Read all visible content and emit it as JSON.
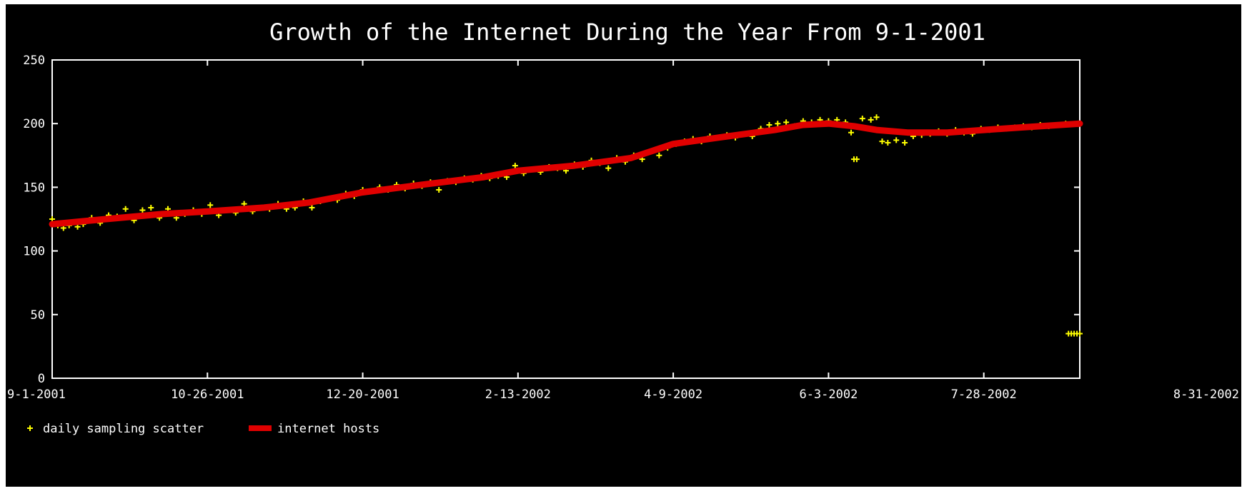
{
  "chart_data": {
    "type": "line",
    "title": "Growth of the Internet During the Year From 9-1-2001",
    "xlabel": "",
    "ylabel": "",
    "ylim": [
      0,
      250
    ],
    "xlim": [
      "2001-09-01",
      "2002-08-31"
    ],
    "yticks": [
      0,
      50,
      100,
      150,
      200,
      250
    ],
    "xtick_labels": [
      "9-1-2001",
      "10-26-2001",
      "12-20-2001",
      "2-13-2002",
      "4-9-2002",
      "6-3-2002",
      "7-28-2002",
      "8-31-2002"
    ],
    "xtick_dates": [
      "2001-09-01",
      "2001-10-26",
      "2001-12-20",
      "2002-02-13",
      "2002-04-09",
      "2002-06-03",
      "2002-07-28",
      "2002-08-31"
    ],
    "grid": false,
    "legend_position": "bottom-left",
    "series": [
      {
        "name": "daily sampling scatter",
        "kind": "scatter",
        "color": "#ffff00",
        "points": [
          [
            "2001-09-01",
            125
          ],
          [
            "2001-09-03",
            120
          ],
          [
            "2001-09-05",
            118
          ],
          [
            "2001-09-07",
            120
          ],
          [
            "2001-09-10",
            119
          ],
          [
            "2001-09-12",
            121
          ],
          [
            "2001-09-15",
            126
          ],
          [
            "2001-09-18",
            122
          ],
          [
            "2001-09-21",
            128
          ],
          [
            "2001-09-24",
            127
          ],
          [
            "2001-09-27",
            133
          ],
          [
            "2001-09-30",
            124
          ],
          [
            "2001-10-03",
            132
          ],
          [
            "2001-10-06",
            134
          ],
          [
            "2001-10-09",
            126
          ],
          [
            "2001-10-12",
            133
          ],
          [
            "2001-10-15",
            126
          ],
          [
            "2001-10-18",
            129
          ],
          [
            "2001-10-21",
            132
          ],
          [
            "2001-10-24",
            129
          ],
          [
            "2001-10-27",
            136
          ],
          [
            "2001-10-30",
            128
          ],
          [
            "2001-11-02",
            132
          ],
          [
            "2001-11-05",
            130
          ],
          [
            "2001-11-08",
            137
          ],
          [
            "2001-11-11",
            131
          ],
          [
            "2001-11-14",
            134
          ],
          [
            "2001-11-17",
            133
          ],
          [
            "2001-11-20",
            137
          ],
          [
            "2001-11-23",
            133
          ],
          [
            "2001-11-26",
            134
          ],
          [
            "2001-11-29",
            139
          ],
          [
            "2001-12-02",
            134
          ],
          [
            "2001-12-05",
            139
          ],
          [
            "2001-12-08",
            141
          ],
          [
            "2001-12-11",
            140
          ],
          [
            "2001-12-14",
            145
          ],
          [
            "2001-12-17",
            143
          ],
          [
            "2001-12-20",
            148
          ],
          [
            "2001-12-23",
            147
          ],
          [
            "2001-12-26",
            150
          ],
          [
            "2001-12-29",
            148
          ],
          [
            "2002-01-01",
            152
          ],
          [
            "2002-01-04",
            149
          ],
          [
            "2002-01-07",
            153
          ],
          [
            "2002-01-10",
            151
          ],
          [
            "2002-01-13",
            154
          ],
          [
            "2002-01-16",
            148
          ],
          [
            "2002-01-19",
            155
          ],
          [
            "2002-01-22",
            154
          ],
          [
            "2002-01-25",
            157
          ],
          [
            "2002-01-28",
            156
          ],
          [
            "2002-01-31",
            159
          ],
          [
            "2002-02-03",
            157
          ],
          [
            "2002-02-06",
            159
          ],
          [
            "2002-02-09",
            158
          ],
          [
            "2002-02-12",
            167
          ],
          [
            "2002-02-15",
            161
          ],
          [
            "2002-02-18",
            164
          ],
          [
            "2002-02-21",
            162
          ],
          [
            "2002-02-24",
            166
          ],
          [
            "2002-02-27",
            165
          ],
          [
            "2002-03-02",
            163
          ],
          [
            "2002-03-05",
            168
          ],
          [
            "2002-03-08",
            166
          ],
          [
            "2002-03-11",
            171
          ],
          [
            "2002-03-14",
            169
          ],
          [
            "2002-03-17",
            165
          ],
          [
            "2002-03-20",
            173
          ],
          [
            "2002-03-23",
            170
          ],
          [
            "2002-03-26",
            175
          ],
          [
            "2002-03-29",
            172
          ],
          [
            "2002-04-01",
            178
          ],
          [
            "2002-04-04",
            175
          ],
          [
            "2002-04-07",
            181
          ],
          [
            "2002-04-10",
            184
          ],
          [
            "2002-04-13",
            186
          ],
          [
            "2002-04-16",
            188
          ],
          [
            "2002-04-19",
            186
          ],
          [
            "2002-04-22",
            190
          ],
          [
            "2002-04-25",
            189
          ],
          [
            "2002-04-28",
            191
          ],
          [
            "2002-05-01",
            189
          ],
          [
            "2002-05-04",
            192
          ],
          [
            "2002-05-07",
            190
          ],
          [
            "2002-05-10",
            196
          ],
          [
            "2002-05-13",
            199
          ],
          [
            "2002-05-16",
            200
          ],
          [
            "2002-05-19",
            201
          ],
          [
            "2002-05-22",
            198
          ],
          [
            "2002-05-25",
            202
          ],
          [
            "2002-05-28",
            201
          ],
          [
            "2002-05-31",
            203
          ],
          [
            "2002-06-03",
            202
          ],
          [
            "2002-06-06",
            203
          ],
          [
            "2002-06-09",
            201
          ],
          [
            "2002-06-11",
            193
          ],
          [
            "2002-06-12",
            172
          ],
          [
            "2002-06-13",
            172
          ],
          [
            "2002-06-15",
            204
          ],
          [
            "2002-06-18",
            203
          ],
          [
            "2002-06-20",
            205
          ],
          [
            "2002-06-22",
            186
          ],
          [
            "2002-06-24",
            185
          ],
          [
            "2002-06-27",
            187
          ],
          [
            "2002-06-30",
            185
          ],
          [
            "2002-07-03",
            190
          ],
          [
            "2002-07-06",
            191
          ],
          [
            "2002-07-09",
            192
          ],
          [
            "2002-07-12",
            194
          ],
          [
            "2002-07-15",
            192
          ],
          [
            "2002-07-18",
            195
          ],
          [
            "2002-07-21",
            193
          ],
          [
            "2002-07-24",
            192
          ],
          [
            "2002-07-27",
            196
          ],
          [
            "2002-07-30",
            195
          ],
          [
            "2002-08-02",
            197
          ],
          [
            "2002-08-05",
            196
          ],
          [
            "2002-08-08",
            197
          ],
          [
            "2002-08-11",
            198
          ],
          [
            "2002-08-14",
            197
          ],
          [
            "2002-08-17",
            199
          ],
          [
            "2002-08-20",
            198
          ],
          [
            "2002-08-23",
            199
          ],
          [
            "2002-08-26",
            200
          ],
          [
            "2002-08-27",
            35
          ],
          [
            "2002-08-28",
            35
          ],
          [
            "2002-08-29",
            35
          ],
          [
            "2002-08-30",
            35
          ],
          [
            "2002-08-31",
            35
          ]
        ]
      },
      {
        "name": "internet hosts",
        "kind": "line",
        "color": "#e00000",
        "points": [
          [
            "2001-09-01",
            121
          ],
          [
            "2001-09-20",
            125
          ],
          [
            "2001-10-10",
            129
          ],
          [
            "2001-10-26",
            131
          ],
          [
            "2001-11-15",
            134
          ],
          [
            "2001-12-01",
            138
          ],
          [
            "2001-12-20",
            146
          ],
          [
            "2002-01-10",
            152
          ],
          [
            "2002-02-01",
            158
          ],
          [
            "2002-02-13",
            163
          ],
          [
            "2002-03-05",
            167
          ],
          [
            "2002-03-25",
            173
          ],
          [
            "2002-04-09",
            184
          ],
          [
            "2002-04-25",
            189
          ],
          [
            "2002-05-15",
            195
          ],
          [
            "2002-05-25",
            199
          ],
          [
            "2002-06-03",
            200
          ],
          [
            "2002-06-12",
            198
          ],
          [
            "2002-06-20",
            195
          ],
          [
            "2002-07-01",
            193
          ],
          [
            "2002-07-15",
            193
          ],
          [
            "2002-07-28",
            195
          ],
          [
            "2002-08-10",
            197
          ],
          [
            "2002-08-31",
            200
          ]
        ]
      }
    ]
  }
}
